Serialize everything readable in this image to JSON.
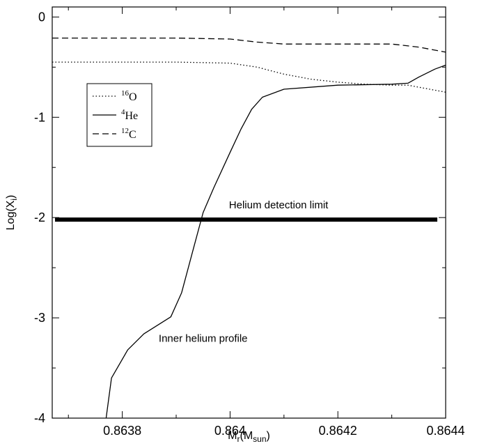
{
  "chart_data": {
    "type": "line",
    "xlabel": {
      "main": "M",
      "sub": "r",
      "paren_open": "(M",
      "paren_sub": "sun",
      "paren_close": ")"
    },
    "ylabel": {
      "main": "Log(X",
      "sub": "i",
      "close": ")"
    },
    "xlim": [
      0.86367,
      0.8644
    ],
    "ylim": [
      -4,
      0.1
    ],
    "xticks": [
      0.8638,
      0.864,
      0.8642,
      0.8644
    ],
    "xtick_labels": [
      "0.8638",
      "0.864",
      "0.8642",
      "0.8644"
    ],
    "yticks": [
      0,
      -1,
      -2,
      -3,
      -4
    ],
    "ytick_labels": [
      "0",
      "-1",
      "-2",
      "-3",
      "-4"
    ],
    "legend": [
      {
        "sup": "16",
        "label": "O",
        "style": "dotted"
      },
      {
        "sup": "4",
        "label": "He",
        "style": "solid"
      },
      {
        "sup": "12",
        "label": "C",
        "style": "dashed"
      }
    ],
    "legend_position": "upper-left",
    "series": [
      {
        "name": "16O",
        "style": "dotted",
        "x": [
          0.86367,
          0.8637,
          0.8638,
          0.8639,
          0.864,
          0.86405,
          0.8641,
          0.86415,
          0.8642,
          0.86425,
          0.8643,
          0.86433,
          0.86435,
          0.86438,
          0.8644
        ],
        "y": [
          -0.45,
          -0.45,
          -0.45,
          -0.45,
          -0.46,
          -0.5,
          -0.57,
          -0.62,
          -0.65,
          -0.67,
          -0.68,
          -0.68,
          -0.7,
          -0.73,
          -0.75
        ]
      },
      {
        "name": "4He",
        "style": "solid",
        "x": [
          0.86377,
          0.86378,
          0.86381,
          0.86384,
          0.86389,
          0.86391,
          0.86393,
          0.86395,
          0.86397,
          0.864,
          0.86402,
          0.86404,
          0.86406,
          0.8641,
          0.8642,
          0.8643,
          0.86433,
          0.86435,
          0.86438,
          0.8644
        ],
        "y": [
          -4.0,
          -3.6,
          -3.32,
          -3.16,
          -2.99,
          -2.75,
          -2.35,
          -1.95,
          -1.7,
          -1.35,
          -1.12,
          -0.92,
          -0.8,
          -0.72,
          -0.68,
          -0.67,
          -0.66,
          -0.6,
          -0.52,
          -0.48
        ]
      },
      {
        "name": "12C",
        "style": "dashed",
        "x": [
          0.86367,
          0.8637,
          0.8638,
          0.8639,
          0.864,
          0.86405,
          0.8641,
          0.8642,
          0.8643,
          0.86435,
          0.8644
        ],
        "y": [
          -0.21,
          -0.21,
          -0.21,
          -0.21,
          -0.22,
          -0.25,
          -0.27,
          -0.27,
          -0.27,
          -0.3,
          -0.35
        ]
      }
    ],
    "reference_line": {
      "y": -2.02,
      "x_range": [
        0.86367,
        0.8644
      ],
      "label": "Helium detection limit"
    },
    "annotations": [
      {
        "text": "Helium detection limit",
        "x": 0.86409,
        "y": -1.91
      },
      {
        "text": "Inner helium profile",
        "x": 0.86395,
        "y": -3.24
      }
    ]
  }
}
